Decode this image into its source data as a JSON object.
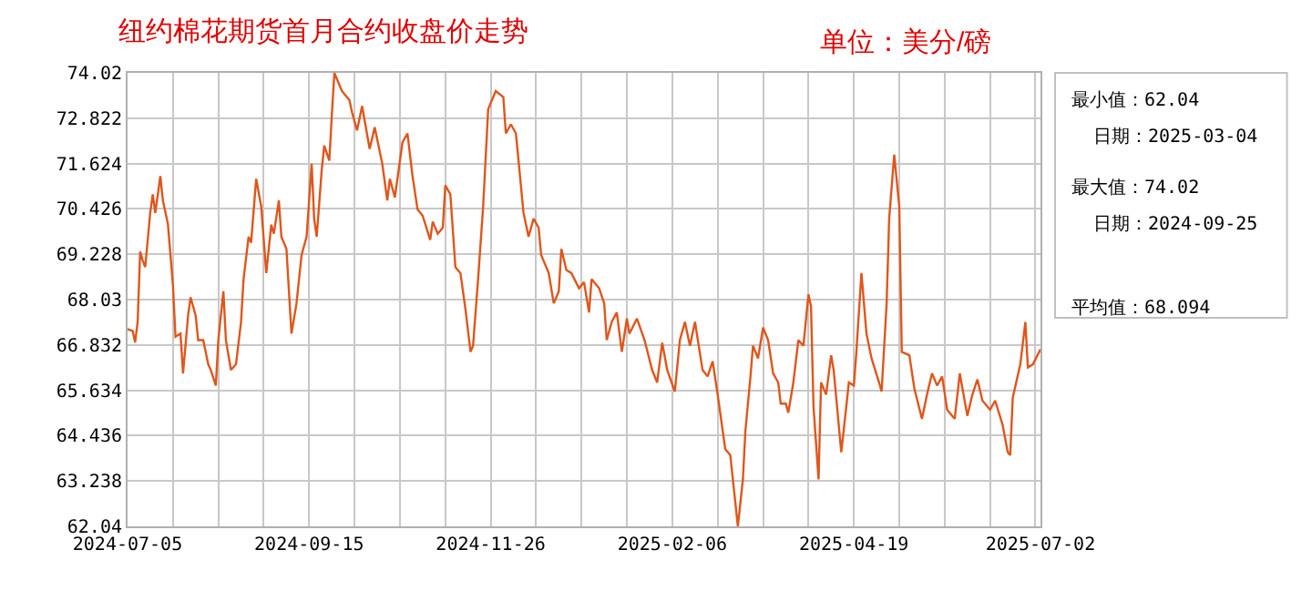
{
  "chart_data": {
    "type": "line",
    "title": "纽约棉花期货首月合约收盘价走势",
    "subtitle": "单位：美分/磅",
    "annotations": [
      "最小值：62.04",
      "日期：2025-03-04",
      "最大值：74.02",
      "日期：2024-09-25",
      "平均值：68.094"
    ],
    "xlim": [
      "2024-07-05",
      "2025-07-02"
    ],
    "xticks": [
      "2024-07-05",
      "2024-09-15",
      "2024-11-26",
      "2025-02-06",
      "2025-04-19",
      "2025-07-02"
    ],
    "ylim": [
      62.04,
      74.02
    ],
    "yticks": [
      62.04,
      63.238,
      64.436,
      65.634,
      66.832,
      68.03,
      69.228,
      70.426,
      71.624,
      72.822,
      74.02
    ],
    "grid": true,
    "series": [
      {
        "color": "#e0561c",
        "x": [
          "2024-07-05",
          "2024-07-07",
          "2024-07-08",
          "2024-07-09",
          "2024-07-10",
          "2024-07-11",
          "2024-07-12",
          "2024-07-14",
          "2024-07-15",
          "2024-07-16",
          "2024-07-18",
          "2024-07-19",
          "2024-07-21",
          "2024-07-23",
          "2024-07-24",
          "2024-07-26",
          "2024-07-27",
          "2024-07-29",
          "2024-07-30",
          "2024-08-01",
          "2024-08-02",
          "2024-08-04",
          "2024-08-06",
          "2024-08-07",
          "2024-08-09",
          "2024-08-10",
          "2024-08-12",
          "2024-08-13",
          "2024-08-15",
          "2024-08-17",
          "2024-08-19",
          "2024-08-20",
          "2024-08-22",
          "2024-08-23",
          "2024-08-25",
          "2024-08-27",
          "2024-08-29",
          "2024-08-31",
          "2024-09-01",
          "2024-09-03",
          "2024-09-04",
          "2024-09-06",
          "2024-09-08",
          "2024-09-10",
          "2024-09-12",
          "2024-09-14",
          "2024-09-16",
          "2024-09-17",
          "2024-09-18",
          "2024-09-20",
          "2024-09-21",
          "2024-09-23",
          "2024-09-24",
          "2024-09-25",
          "2024-09-28",
          "2024-10-01",
          "2024-10-02",
          "2024-10-04",
          "2024-10-06",
          "2024-10-09",
          "2024-10-11",
          "2024-10-14",
          "2024-10-16",
          "2024-10-17",
          "2024-10-19",
          "2024-10-22",
          "2024-10-24",
          "2024-10-26",
          "2024-10-28",
          "2024-10-30",
          "2024-11-02",
          "2024-11-03",
          "2024-11-05",
          "2024-11-07",
          "2024-11-08",
          "2024-11-10",
          "2024-11-12",
          "2024-11-14",
          "2024-11-16",
          "2024-11-18",
          "2024-11-19",
          "2024-11-21",
          "2024-11-23",
          "2024-11-25",
          "2024-11-28",
          "2024-12-01",
          "2024-12-02",
          "2024-12-04",
          "2024-12-06",
          "2024-12-09",
          "2024-12-11",
          "2024-12-13",
          "2024-12-15",
          "2024-12-16",
          "2024-12-19",
          "2024-12-21",
          "2024-12-23",
          "2024-12-24",
          "2024-12-26",
          "2024-12-28",
          "2024-12-31",
          "2025-01-02",
          "2025-01-04",
          "2025-01-05",
          "2025-01-08",
          "2025-01-10",
          "2025-01-11",
          "2025-01-13",
          "2025-01-15",
          "2025-01-17",
          "2025-01-19",
          "2025-01-20",
          "2025-01-23",
          "2025-01-26",
          "2025-01-29",
          "2025-01-31",
          "2025-02-02",
          "2025-02-04",
          "2025-02-07",
          "2025-02-09",
          "2025-02-11",
          "2025-02-13",
          "2025-02-15",
          "2025-02-18",
          "2025-02-20",
          "2025-02-22",
          "2025-02-24",
          "2025-02-26",
          "2025-02-27",
          "2025-03-01",
          "2025-03-04",
          "2025-03-06",
          "2025-03-07",
          "2025-03-09",
          "2025-03-10",
          "2025-03-12",
          "2025-03-14",
          "2025-03-16",
          "2025-03-18",
          "2025-03-20",
          "2025-03-21",
          "2025-03-23",
          "2025-03-24",
          "2025-03-26",
          "2025-03-28",
          "2025-03-30",
          "2025-04-01",
          "2025-04-02",
          "2025-04-03",
          "2025-04-05",
          "2025-04-06",
          "2025-04-08",
          "2025-04-10",
          "2025-04-11",
          "2025-04-14",
          "2025-04-16",
          "2025-04-17",
          "2025-04-19",
          "2025-04-20",
          "2025-04-22",
          "2025-04-24",
          "2025-04-26",
          "2025-04-29",
          "2025-04-30",
          "2025-05-02",
          "2025-05-03",
          "2025-05-05",
          "2025-05-07",
          "2025-05-08",
          "2025-05-11",
          "2025-05-13",
          "2025-05-16",
          "2025-05-18",
          "2025-05-20",
          "2025-05-22",
          "2025-05-24",
          "2025-05-26",
          "2025-05-29",
          "2025-05-31",
          "2025-06-03",
          "2025-06-05",
          "2025-06-07",
          "2025-06-09",
          "2025-06-12",
          "2025-06-14",
          "2025-06-17",
          "2025-06-19",
          "2025-06-20",
          "2025-06-21",
          "2025-06-24",
          "2025-06-26",
          "2025-06-27",
          "2025-06-29",
          "2025-07-02"
        ],
        "values": [
          67.25,
          67.2,
          66.9,
          67.44,
          69.3,
          69.06,
          68.89,
          70.33,
          70.81,
          70.32,
          71.29,
          70.65,
          70.03,
          68.41,
          67.05,
          67.13,
          66.08,
          67.61,
          68.09,
          67.61,
          66.96,
          66.96,
          66.32,
          66.17,
          65.76,
          66.96,
          68.25,
          66.96,
          66.17,
          66.32,
          67.44,
          68.57,
          69.69,
          69.53,
          71.22,
          70.49,
          68.73,
          70.01,
          69.77,
          70.65,
          69.69,
          69.37,
          67.13,
          67.93,
          69.21,
          69.69,
          71.62,
          70.17,
          69.69,
          71.46,
          72.1,
          71.7,
          72.9,
          74.02,
          73.54,
          73.3,
          72.98,
          72.5,
          73.14,
          72.01,
          72.58,
          71.62,
          70.65,
          71.22,
          70.73,
          72.18,
          72.42,
          71.29,
          70.41,
          70.25,
          69.61,
          70.09,
          69.77,
          69.93,
          71.05,
          70.81,
          68.89,
          68.73,
          67.77,
          66.65,
          66.81,
          68.57,
          70.49,
          73.06,
          73.54,
          73.38,
          72.42,
          72.66,
          72.42,
          70.33,
          69.69,
          70.17,
          69.93,
          69.21,
          68.73,
          67.93,
          68.25,
          69.37,
          68.81,
          68.73,
          68.33,
          68.49,
          67.69,
          68.57,
          68.33,
          67.93,
          66.96,
          67.44,
          67.69,
          66.65,
          67.53,
          67.13,
          67.53,
          66.96,
          66.17,
          65.84,
          66.89,
          66.17,
          65.6,
          66.96,
          67.44,
          66.81,
          67.44,
          66.17,
          66.0,
          66.4,
          65.52,
          64.56,
          64.08,
          63.92,
          62.04,
          63.28,
          64.56,
          66.0,
          66.81,
          66.48,
          67.29,
          66.96,
          66.08,
          65.84,
          65.28,
          65.28,
          65.04,
          65.84,
          66.96,
          66.81,
          68.17,
          67.85,
          65.2,
          63.28,
          65.84,
          65.52,
          66.56,
          66.17,
          64.0,
          65.2,
          65.84,
          65.76,
          66.65,
          68.73,
          67.13,
          66.48,
          65.84,
          65.6,
          67.93,
          70.17,
          71.86,
          70.49,
          66.65,
          66.56,
          65.68,
          64.88,
          65.52,
          66.08,
          65.76,
          66.0,
          65.12,
          64.88,
          66.08,
          64.96,
          65.52,
          65.92,
          65.36,
          65.12,
          65.36,
          64.72,
          64.0,
          63.92,
          65.44,
          66.32,
          67.44,
          66.24,
          66.32,
          66.72
        ]
      }
    ]
  }
}
